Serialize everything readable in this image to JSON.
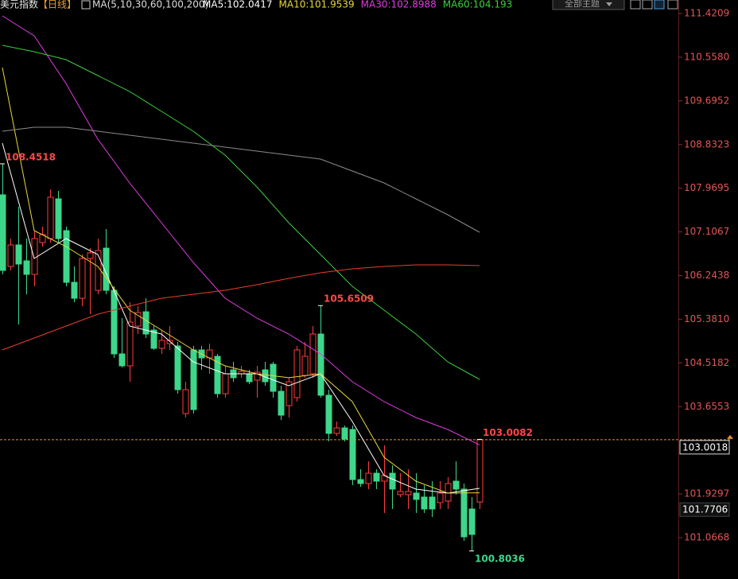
{
  "chart_data": {
    "type": "candlestick",
    "title": "美元指数",
    "period": "【日线】",
    "indicator": "MA(5,10,30,60,100,200)",
    "toolbar_label": "全部主题",
    "up_color": "#ff3d3d",
    "down_color": "#3ed68a",
    "open": [
      107.839,
      106.425,
      106.849,
      106.535,
      106.268,
      106.896,
      106.975,
      107.76,
      107.132,
      106.111,
      105.796,
      106.582,
      105.953,
      106.786,
      105.953,
      104.697,
      104.461,
      105.246,
      105.529,
      105.168,
      104.807,
      104.901,
      104.854,
      103.518,
      104.775,
      104.775,
      104.618,
      104.649,
      103.911,
      104.382,
      104.304,
      104.304,
      104.178,
      104.382,
      104.492,
      103.958,
      103.675,
      103.832,
      104.272,
      104.304,
      105.089,
      103.88,
      103.126,
      103.235,
      103.204,
      102.214,
      102.136,
      102.34,
      102.183,
      102.34,
      101.916,
      101.916,
      101.947,
      101.869,
      101.869,
      101.759,
      101.79,
      102.183,
      102.026,
      101.633,
      101.7706
    ],
    "high": [
      108.4518,
      106.975,
      107.603,
      106.975,
      107.132,
      107.21,
      107.949,
      107.917,
      107.21,
      106.425,
      106.66,
      106.786,
      106.975,
      107.163,
      106.032,
      105.404,
      105.718,
      105.639,
      105.796,
      105.246,
      105.168,
      105.246,
      104.932,
      104.147,
      104.854,
      104.854,
      104.901,
      104.697,
      104.461,
      104.539,
      104.461,
      104.382,
      104.461,
      104.539,
      104.539,
      104.068,
      104.226,
      104.854,
      104.932,
      105.246,
      105.6509,
      103.99,
      103.361,
      103.283,
      103.283,
      102.418,
      102.576,
      102.418,
      102.89,
      102.497,
      102.34,
      102.418,
      102.34,
      102.104,
      102.183,
      102.183,
      102.261,
      102.576,
      102.136,
      101.869,
      103.0082
    ],
    "low": [
      106.268,
      106.346,
      105.278,
      105.875,
      106.032,
      106.818,
      106.896,
      106.896,
      106.032,
      105.718,
      105.639,
      105.482,
      105.875,
      105.875,
      104.618,
      104.43,
      104.147,
      105.089,
      105.011,
      104.775,
      104.697,
      104.775,
      103.911,
      103.44,
      103.518,
      104.382,
      104.304,
      103.832,
      103.832,
      104.147,
      104.226,
      104.1,
      103.832,
      104.068,
      103.832,
      103.393,
      103.44,
      103.754,
      104.226,
      104.226,
      103.832,
      102.968,
      103.078,
      102.968,
      102.104,
      102.073,
      102.026,
      102.026,
      101.554,
      101.633,
      101.869,
      101.633,
      101.554,
      101.554,
      101.476,
      101.633,
      101.633,
      101.916,
      101.005,
      100.8036,
      101.633
    ],
    "close": [
      106.346,
      106.849,
      106.472,
      106.268,
      106.975,
      107.053,
      107.792,
      106.975,
      106.111,
      105.796,
      106.582,
      106.692,
      106.739,
      105.953,
      104.697,
      104.461,
      105.325,
      105.514,
      105.089,
      104.807,
      104.964,
      104.964,
      103.99,
      103.99,
      103.597,
      104.618,
      104.775,
      103.911,
      104.304,
      104.226,
      104.351,
      104.147,
      104.335,
      104.147,
      103.958,
      103.487,
      104.147,
      104.775,
      104.649,
      105.089,
      103.88,
      103.126,
      103.235,
      103.016,
      102.214,
      102.136,
      102.34,
      102.183,
      102.293,
      102.026,
      101.979,
      101.979,
      101.822,
      101.633,
      101.633,
      101.947,
      102.136,
      102.026,
      101.083,
      101.13,
      103.0018
    ],
    "ma_x": [
      0,
      4,
      8,
      12,
      16,
      20,
      24,
      28,
      32,
      36,
      40,
      44,
      48,
      52,
      56,
      60
    ],
    "ma": [
      {
        "name": "MA5",
        "label": "MA5:102.0417",
        "color": "#ffffff",
        "values": [
          108.86,
          106.582,
          106.975,
          106.66,
          105.246,
          105.089,
          104.539,
          104.304,
          104.304,
          104.068,
          104.304,
          103.361,
          102.293,
          102.026,
          101.947,
          102.0417
        ]
      },
      {
        "name": "MA10",
        "label": "MA10:101.9539",
        "color": "#e8d83a",
        "values": [
          110.353,
          107.132,
          106.818,
          106.425,
          105.561,
          105.168,
          104.775,
          104.461,
          104.304,
          104.226,
          104.304,
          103.754,
          102.654,
          102.183,
          101.947,
          101.9539
        ]
      },
      {
        "name": "MA30",
        "label": "MA30:102.8988",
        "color": "#e03ce0",
        "values": [
          111.374,
          110.981,
          110.038,
          108.939,
          108.074,
          107.289,
          106.504,
          105.796,
          105.404,
          105.089,
          104.697,
          104.147,
          103.754,
          103.44,
          103.204,
          102.8988
        ]
      },
      {
        "name": "MA60",
        "label": "MA60:104.193",
        "color": "#3ccf3c",
        "values": [
          110.793,
          110.667,
          110.51,
          110.195,
          109.881,
          109.489,
          109.096,
          108.624,
          107.996,
          107.289,
          106.66,
          106.032,
          105.561,
          105.089,
          104.539,
          104.193
        ]
      },
      {
        "color": "#8c8c8c",
        "values": [
          109.096,
          109.174,
          109.174,
          109.096,
          109.017,
          108.939,
          108.86,
          108.782,
          108.703,
          108.624,
          108.546,
          108.31,
          108.074,
          107.76,
          107.446,
          107.1
        ]
      },
      {
        "color": "#e8402a",
        "values": [
          104.775,
          105.011,
          105.246,
          105.482,
          105.639,
          105.796,
          105.875,
          105.953,
          106.064,
          106.189,
          106.299,
          106.378,
          106.425,
          106.456,
          106.456,
          106.441
        ]
      }
    ],
    "xlim": [
      -0.3,
      85
    ],
    "ylim": [
      100.25,
      111.688
    ],
    "yticks": [
      111.4209,
      {
        "value": 110.558,
        "label": "110.5580"
      },
      109.6952,
      108.8323,
      107.9695,
      107.1067,
      106.2438,
      {
        "value": 105.381,
        "label": "105.3810"
      },
      104.5182,
      103.6553,
      101.9297,
      101.0668
    ],
    "grid": false
  }
}
